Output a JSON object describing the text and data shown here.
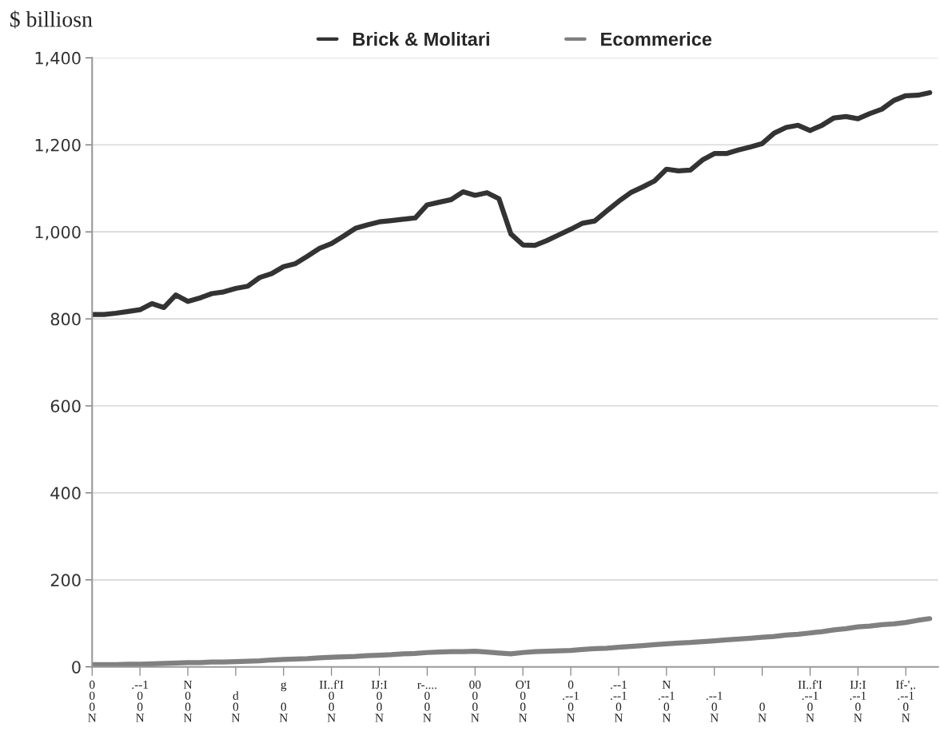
{
  "chart_data": {
    "type": "line",
    "ylabel": "$ billiosn",
    "legend": "top",
    "grid": "y",
    "line_style": "solid",
    "marker": "none",
    "ylim": [
      0,
      1400
    ],
    "categories": [
      "0\n0\n0\nN",
      null,
      null,
      null,
      ".--1\n0\n0\nN",
      null,
      null,
      null,
      "N\n0\n0\nN",
      null,
      null,
      null,
      "\nd\n0\nN",
      null,
      null,
      null,
      "g\n\n0\nN",
      null,
      null,
      null,
      "II..f'I\n0\n0\nN",
      null,
      null,
      null,
      "IJ:I\n0\n0\nN",
      null,
      null,
      null,
      "r-....\n0\n0\nN",
      null,
      null,
      null,
      "00\n0\n0\nN",
      null,
      null,
      null,
      "O'I\n0\n0\nN",
      null,
      null,
      null,
      "0\n.--1\n0\nN",
      null,
      null,
      null,
      ".--1\n.--1\n0\nN",
      null,
      null,
      null,
      "N\n.--1\n0\nN",
      null,
      null,
      null,
      "\n.--1\n0\nN",
      null,
      null,
      null,
      "\n\n0\nN",
      null,
      null,
      null,
      "II..f'I\n.--1\n0\nN",
      null,
      null,
      null,
      "IJ:I\n.--1\n0\nN",
      null,
      null,
      null,
      "If-',.\n.--1\n0\nN",
      null,
      null
    ],
    "yticks": [
      0,
      200,
      400,
      600,
      800,
      {
        "value": 1000,
        "label": "1,000"
      },
      {
        "value": 1200,
        "label": "1,200"
      },
      {
        "value": 1400,
        "label": "1,400"
      }
    ],
    "series": [
      {
        "name": "Brick & Molitari",
        "color": "#333333",
        "values": [
          810,
          810,
          813,
          817,
          821,
          835,
          826,
          855,
          840,
          848,
          858,
          862,
          870,
          875,
          895,
          904,
          920,
          927,
          944,
          962,
          973,
          990,
          1008,
          1016,
          1023,
          1026,
          1029,
          1032,
          1062,
          1068,
          1074,
          1092,
          1084,
          1090,
          1076,
          995,
          970,
          969,
          980,
          993,
          1006,
          1020,
          1025,
          1048,
          1070,
          1090,
          1103,
          1117,
          1144,
          1140,
          1142,
          1165,
          1180,
          1180,
          1188,
          1195,
          1203,
          1227,
          1240,
          1245,
          1233,
          1245,
          1262,
          1265,
          1260,
          1272,
          1282,
          1302,
          1313,
          1314,
          1320
        ]
      },
      {
        "name": "Ecommerice",
        "color": "#808080",
        "values": [
          5,
          5,
          5,
          6,
          6,
          7,
          8,
          9,
          10,
          10,
          11,
          11,
          12,
          13,
          14,
          16,
          17,
          18,
          19,
          21,
          22,
          23,
          24,
          26,
          27,
          28,
          30,
          31,
          33,
          34,
          35,
          35,
          36,
          34,
          32,
          30,
          33,
          35,
          36,
          37,
          38,
          40,
          42,
          43,
          45,
          47,
          49,
          51,
          53,
          55,
          56,
          58,
          60,
          62,
          64,
          66,
          68,
          70,
          73,
          75,
          78,
          81,
          85,
          88,
          92,
          94,
          97,
          99,
          102,
          107,
          111
        ]
      }
    ]
  }
}
